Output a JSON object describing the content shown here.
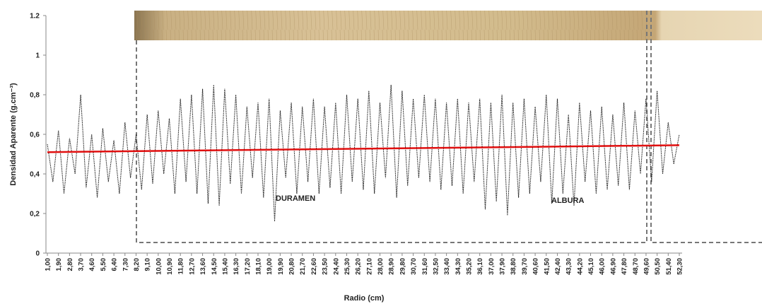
{
  "chart_data": {
    "type": "line",
    "ylabel": "Densidad Aparente (g.cm⁻³)",
    "xlabel": "Radio (cm)",
    "annotations": [
      "DURAMEN",
      "ALBURA"
    ],
    "x": [
      1,
      1.45,
      1.9,
      2.35,
      2.8,
      3.25,
      3.7,
      4.15,
      4.6,
      5.05,
      5.5,
      5.95,
      6.4,
      6.85,
      7.3,
      7.75,
      8.2,
      8.65,
      9.1,
      9.55,
      10,
      10.45,
      10.9,
      11.35,
      11.8,
      12.25,
      12.7,
      13.15,
      13.6,
      14.05,
      14.5,
      14.95,
      15.4,
      15.85,
      16.3,
      16.75,
      17.2,
      17.65,
      18.1,
      18.55,
      19,
      19.45,
      19.9,
      20.35,
      20.8,
      21.25,
      21.7,
      22.15,
      22.6,
      23.05,
      23.5,
      23.95,
      24.4,
      24.85,
      25.3,
      25.75,
      26.2,
      26.65,
      27.1,
      27.55,
      28,
      28.45,
      28.9,
      29.35,
      29.8,
      30.25,
      30.7,
      31.15,
      31.6,
      32.05,
      32.5,
      32.95,
      33.4,
      33.85,
      34.3,
      34.75,
      35.2,
      35.65,
      36.1,
      36.55,
      37,
      37.45,
      37.9,
      38.35,
      38.8,
      39.25,
      39.7,
      40.15,
      40.6,
      41.05,
      41.5,
      41.95,
      42.4,
      42.85,
      43.3,
      43.75,
      44.2,
      44.65,
      45.1,
      45.55,
      46,
      46.45,
      46.9,
      47.35,
      47.8,
      48.25,
      48.7,
      49.15,
      49.6,
      50.05,
      50.5,
      50.95,
      51.4,
      51.85,
      52.3
    ],
    "series": [
      {
        "color": "#111111",
        "values": [
          0.55,
          0.36,
          0.62,
          0.3,
          0.58,
          0.4,
          0.8,
          0.33,
          0.6,
          0.28,
          0.63,
          0.36,
          0.57,
          0.3,
          0.66,
          0.38,
          0.6,
          0.32,
          0.7,
          0.35,
          0.72,
          0.4,
          0.68,
          0.3,
          0.78,
          0.36,
          0.8,
          0.3,
          0.83,
          0.25,
          0.85,
          0.24,
          0.83,
          0.35,
          0.8,
          0.3,
          0.74,
          0.38,
          0.76,
          0.28,
          0.78,
          0.16,
          0.72,
          0.38,
          0.76,
          0.3,
          0.74,
          0.36,
          0.78,
          0.3,
          0.74,
          0.33,
          0.76,
          0.3,
          0.8,
          0.36,
          0.78,
          0.32,
          0.82,
          0.3,
          0.76,
          0.38,
          0.85,
          0.28,
          0.82,
          0.34,
          0.78,
          0.38,
          0.8,
          0.36,
          0.78,
          0.32,
          0.76,
          0.34,
          0.78,
          0.3,
          0.76,
          0.36,
          0.78,
          0.22,
          0.76,
          0.26,
          0.8,
          0.19,
          0.76,
          0.28,
          0.78,
          0.3,
          0.74,
          0.36,
          0.8,
          0.25,
          0.78,
          0.3,
          0.7,
          0.24,
          0.76,
          0.36,
          0.72,
          0.3,
          0.74,
          0.32,
          0.7,
          0.34,
          0.76,
          0.32,
          0.72,
          0.4,
          0.78,
          0.36,
          0.82,
          0.4,
          0.66,
          0.45,
          0.6
        ]
      }
    ],
    "trend": {
      "color": "#e01010",
      "x": [
        1,
        52.3
      ],
      "values": [
        0.51,
        0.545
      ]
    },
    "xlim": [
      1,
      52.3
    ],
    "ylim": [
      0,
      1.2
    ],
    "yticks": [
      0,
      {
        "value": 0.2,
        "label": "0,2"
      },
      {
        "value": 0.4,
        "label": "0,4"
      },
      {
        "value": 0.6,
        "label": "0,6"
      },
      {
        "value": 0.8,
        "label": "0,8"
      },
      1,
      {
        "value": 1.2,
        "label": "1.2"
      }
    ],
    "xticks": [
      {
        "value": 1,
        "label": "1,00"
      },
      {
        "value": 1.9,
        "label": "1,90"
      },
      {
        "value": 2.8,
        "label": "2,80"
      },
      {
        "value": 3.7,
        "label": "3,70"
      },
      {
        "value": 4.6,
        "label": "4,60"
      },
      {
        "value": 5.5,
        "label": "5,50"
      },
      {
        "value": 6.4,
        "label": "6,40"
      },
      {
        "value": 7.3,
        "label": "7,30"
      },
      {
        "value": 8.2,
        "label": "8,20"
      },
      {
        "value": 9.1,
        "label": "9,10"
      },
      {
        "value": 10,
        "label": "10,00"
      },
      {
        "value": 10.9,
        "label": "10,90"
      },
      {
        "value": 11.8,
        "label": "11,80"
      },
      {
        "value": 12.7,
        "label": "12,70"
      },
      {
        "value": 13.6,
        "label": "13,60"
      },
      {
        "value": 14.5,
        "label": "14,50"
      },
      {
        "value": 15.4,
        "label": "15,40"
      },
      {
        "value": 16.3,
        "label": "16,30"
      },
      {
        "value": 17.2,
        "label": "17,20"
      },
      {
        "value": 18.1,
        "label": "18,10"
      },
      {
        "value": 19,
        "label": "19,00"
      },
      {
        "value": 19.9,
        "label": "19,90"
      },
      {
        "value": 20.8,
        "label": "20,80"
      },
      {
        "value": 21.7,
        "label": "21,70"
      },
      {
        "value": 22.6,
        "label": "22,60"
      },
      {
        "value": 23.5,
        "label": "23,50"
      },
      {
        "value": 24.4,
        "label": "24,40"
      },
      {
        "value": 25.3,
        "label": "25,30"
      },
      {
        "value": 26.2,
        "label": "26,20"
      },
      {
        "value": 27.1,
        "label": "27,10"
      },
      {
        "value": 28,
        "label": "28,00"
      },
      {
        "value": 28.9,
        "label": "28,90"
      },
      {
        "value": 29.8,
        "label": "29,80"
      },
      {
        "value": 30.7,
        "label": "30,70"
      },
      {
        "value": 31.6,
        "label": "31,60"
      },
      {
        "value": 32.5,
        "label": "32,50"
      },
      {
        "value": 33.4,
        "label": "33,40"
      },
      {
        "value": 34.3,
        "label": "34,30"
      },
      {
        "value": 35.2,
        "label": "35,20"
      },
      {
        "value": 36.1,
        "label": "36,10"
      },
      {
        "value": 37,
        "label": "37,00"
      },
      {
        "value": 37.9,
        "label": "37,90"
      },
      {
        "value": 38.8,
        "label": "38,80"
      },
      {
        "value": 39.7,
        "label": "39,70"
      },
      {
        "value": 40.6,
        "label": "40,60"
      },
      {
        "value": 41.5,
        "label": "41,50"
      },
      {
        "value": 42.4,
        "label": "42,40"
      },
      {
        "value": 43.3,
        "label": "43,30"
      },
      {
        "value": 44.2,
        "label": "44,20"
      },
      {
        "value": 45.1,
        "label": "45,10"
      },
      {
        "value": 46,
        "label": "46,00"
      },
      {
        "value": 46.9,
        "label": "46,90"
      },
      {
        "value": 47.8,
        "label": "47,80"
      },
      {
        "value": 48.7,
        "label": "48,70"
      },
      {
        "value": 49.6,
        "label": "49,60"
      },
      {
        "value": 50.5,
        "label": "50,50"
      },
      {
        "value": 51.4,
        "label": "51,40"
      },
      {
        "value": 52.3,
        "label": "52,30"
      }
    ]
  }
}
